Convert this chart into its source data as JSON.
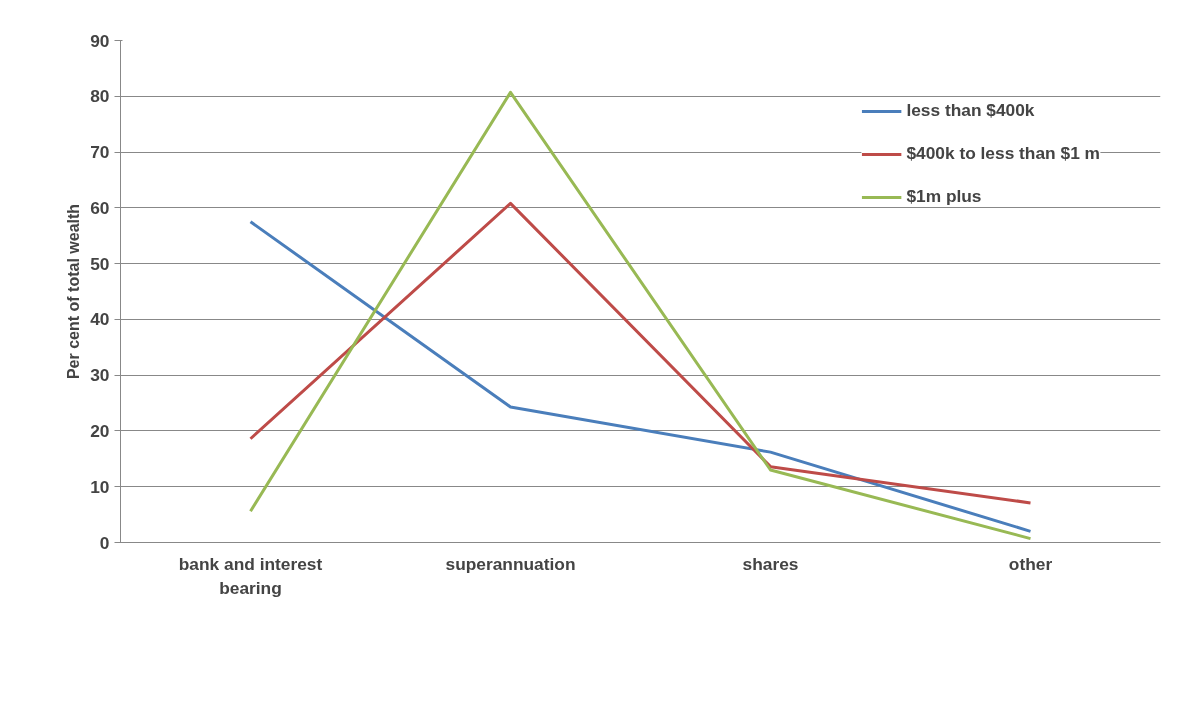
{
  "chart_data": {
    "type": "line",
    "ylabel": "Per cent of total wealth",
    "categories": [
      "bank and interest bearing",
      "superannuation",
      "shares",
      "other"
    ],
    "series": [
      {
        "name": "less than $400k",
        "color": "#4a7ebb",
        "values": [
          57.5,
          24.3,
          16.2,
          2.0
        ]
      },
      {
        "name": "$400k to less than $1 m",
        "color": "#be4b48",
        "values": [
          18.6,
          60.8,
          13.6,
          7.1
        ]
      },
      {
        "name": "$1m plus",
        "color": "#98b954",
        "values": [
          5.6,
          80.7,
          13.0,
          0.7
        ]
      }
    ],
    "ylim": [
      0,
      90
    ],
    "yticks": [
      0,
      10,
      20,
      30,
      40,
      50,
      60,
      70,
      80,
      90
    ],
    "grid": "y",
    "legend": "top right",
    "marker": "none",
    "line_style": "solid"
  }
}
